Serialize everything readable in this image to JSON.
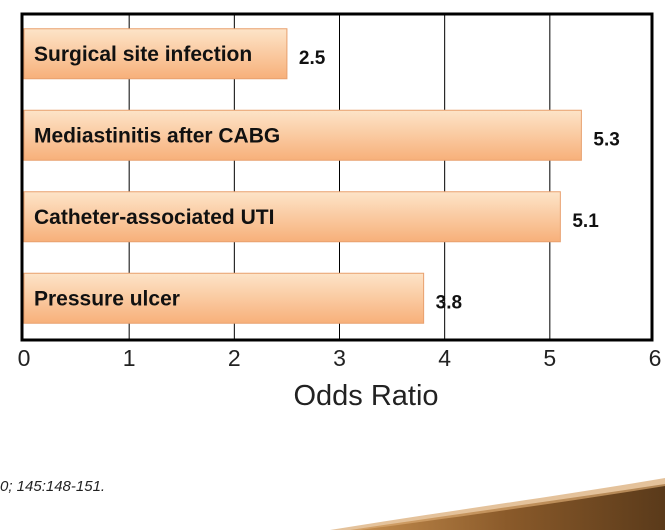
{
  "chart_data": {
    "type": "bar",
    "orientation": "horizontal",
    "categories": [
      "Surgical site infection",
      "Mediastinitis after CABG",
      "Catheter-associated UTI",
      "Pressure ulcer"
    ],
    "values": [
      2.5,
      5.3,
      5.1,
      3.8
    ],
    "value_labels": [
      "2.5",
      "5.3",
      "5.1",
      "3.8"
    ],
    "xlabel": "Odds Ratio",
    "xlim": [
      0,
      6
    ],
    "xticks": [
      "0",
      "1",
      "2",
      "3",
      "4",
      "5",
      "6"
    ],
    "grid": "vertical",
    "legend": "none"
  },
  "citation": "0; 145:148-151.",
  "colors": {
    "bar_top": "#fde4c8",
    "bar_bottom": "#f7b07a",
    "bar_stroke": "#e8a06e",
    "frame": "#000000",
    "decoration_dark": "#5a3a1a",
    "decoration_mid": "#a8703a"
  }
}
